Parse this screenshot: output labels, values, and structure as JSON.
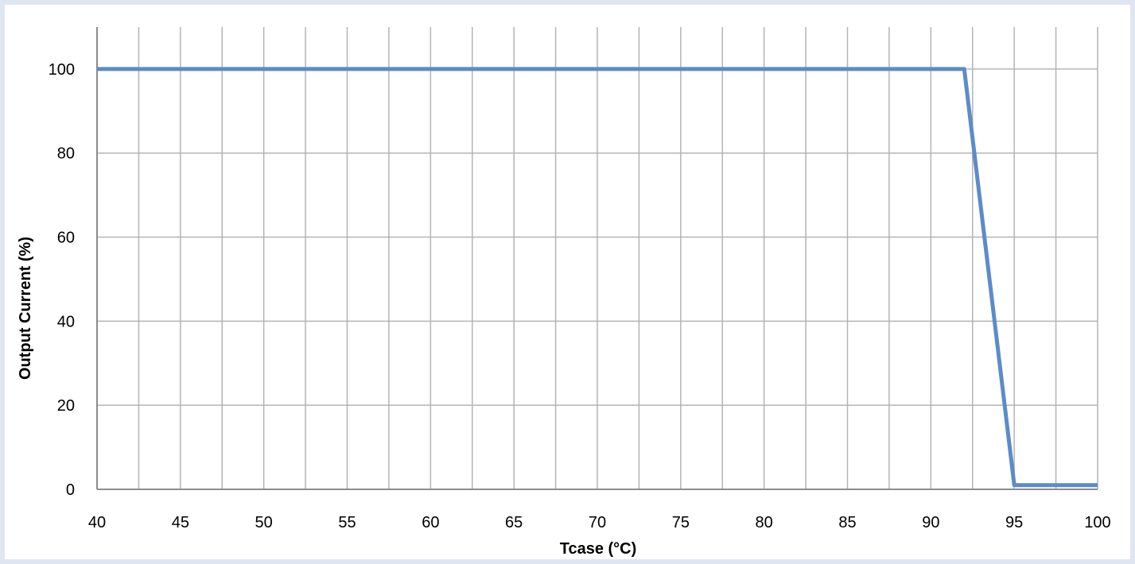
{
  "chart_data": {
    "type": "line",
    "title": "",
    "xlabel": "Tcase (°C)",
    "ylabel": "Output Current (%)",
    "xlim": [
      40,
      100
    ],
    "ylim": [
      0,
      110
    ],
    "x_ticks": [
      40,
      45,
      50,
      55,
      60,
      65,
      70,
      75,
      80,
      85,
      90,
      95,
      100
    ],
    "y_ticks": [
      0,
      20,
      40,
      60,
      80,
      100
    ],
    "x_minor_step": 2.5,
    "y_grid_step": 20,
    "grid": true,
    "legend": "none",
    "series": [
      {
        "color": "#5b8cc8",
        "x": [
          40,
          92,
          95,
          100
        ],
        "y": [
          100,
          100,
          1,
          1
        ]
      }
    ]
  },
  "colors": {
    "background": "#dfe6f1",
    "plot_area": "#ffffff",
    "grid": "#b4b4b4",
    "series": "#5b8cc8"
  }
}
